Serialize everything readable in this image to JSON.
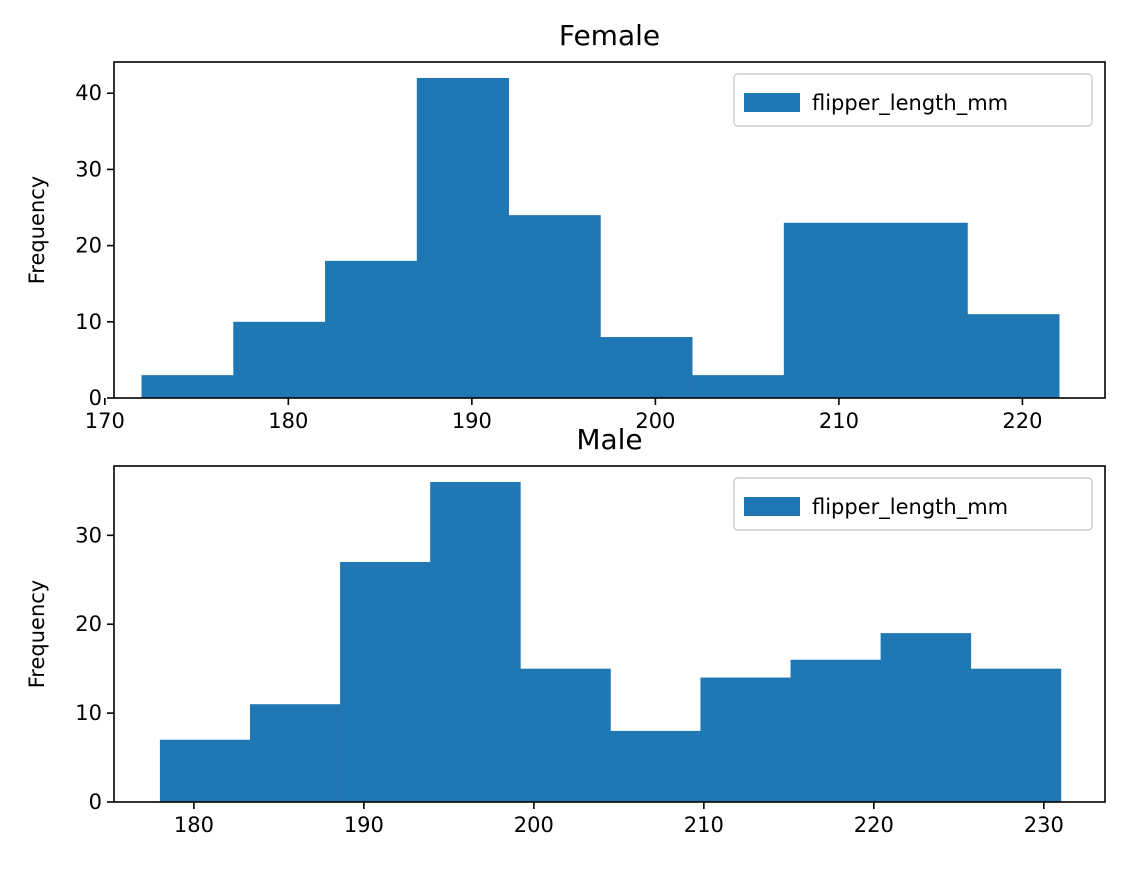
{
  "chart_data": [
    {
      "type": "bar",
      "title": "Female",
      "xlabel": "",
      "ylabel": "Frequency",
      "bin_edges": [
        172,
        177,
        182,
        187,
        192,
        197,
        202,
        207,
        212,
        217,
        222
      ],
      "values": [
        3,
        10,
        18,
        42,
        24,
        8,
        3,
        23,
        23,
        11
      ],
      "xlim": [
        170.5,
        224.5
      ],
      "ylim": [
        0,
        44.1
      ],
      "xticks": [
        170,
        180,
        190,
        200,
        210,
        220
      ],
      "xtick_labels": [
        "170",
        "180",
        "190",
        "200",
        "210",
        "220"
      ],
      "yticks": [
        0,
        10,
        20,
        30,
        40
      ],
      "ytick_labels": [
        "0",
        "10",
        "20",
        "30",
        "40"
      ],
      "legend": {
        "entries": [
          "flipper_length_mm"
        ],
        "position": "top-right"
      },
      "grid": false,
      "color": "#1f77b4"
    },
    {
      "type": "bar",
      "title": "Male",
      "xlabel": "",
      "ylabel": "Frequency",
      "bin_edges": [
        178,
        183.3,
        188.6,
        193.9,
        199.2,
        204.5,
        209.8,
        215.1,
        220.4,
        225.7,
        231
      ],
      "values": [
        7,
        11,
        27,
        36,
        15,
        8,
        14,
        16,
        19,
        15
      ],
      "xlim": [
        175.3,
        233.6
      ],
      "ylim": [
        0,
        37.8
      ],
      "xticks": [
        180,
        190,
        200,
        210,
        220,
        230
      ],
      "xtick_labels": [
        "180",
        "190",
        "200",
        "210",
        "220",
        "230"
      ],
      "yticks": [
        0,
        10,
        20,
        30
      ],
      "ytick_labels": [
        "0",
        "10",
        "20",
        "30"
      ],
      "legend": {
        "entries": [
          "flipper_length_mm"
        ],
        "position": "top-right"
      },
      "grid": false,
      "color": "#1f77b4"
    }
  ]
}
